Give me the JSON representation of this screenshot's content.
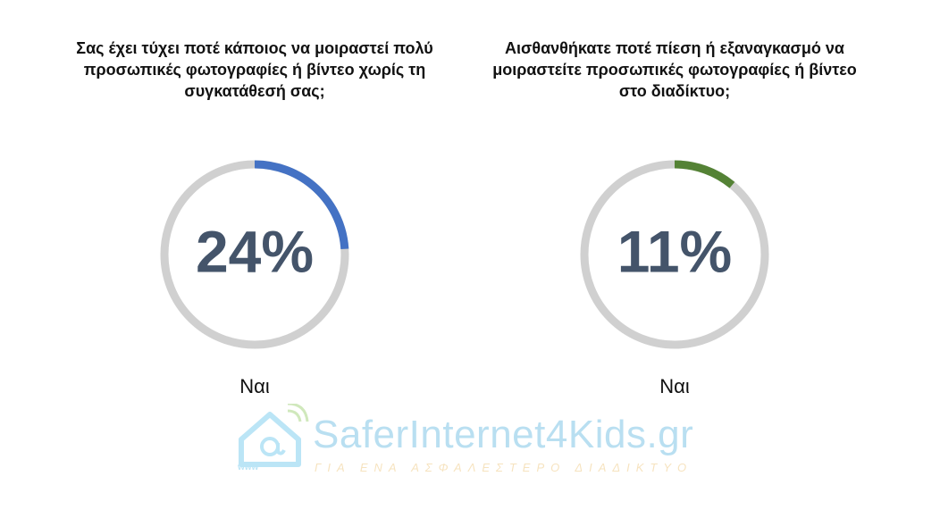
{
  "chart_data": [
    {
      "type": "donut",
      "title": "Σας έχει τύχει ποτέ κάποιος να μοιραστεί πολύ προσωπικές φωτογραφίες ή βίντεο χωρίς τη συγκατάθεσή σας;",
      "value_label": "24%",
      "value": 24,
      "category": "Ναι",
      "color": "#4472c4",
      "track_color": "#d0d0d0"
    },
    {
      "type": "donut",
      "title": "Αισθανθήκατε ποτέ πίεση ή εξαναγκασμό να μοιραστείτε προσωπικές φωτογραφίες ή βίντεο στο διαδίκτυο;",
      "value_label": "11%",
      "value": 11,
      "category": "Ναι",
      "color": "#548235",
      "track_color": "#d0d0d0"
    }
  ],
  "watermark": {
    "name": "SaferInternet4Kids.gr",
    "tagline": "ΓΙΑ ΕΝΑ ΑΣΦΑΛΕΣΤΕΡΟ ΔΙΑΔΙΚΤΥΟ",
    "www": "www",
    "icon": "house-at-icon"
  }
}
